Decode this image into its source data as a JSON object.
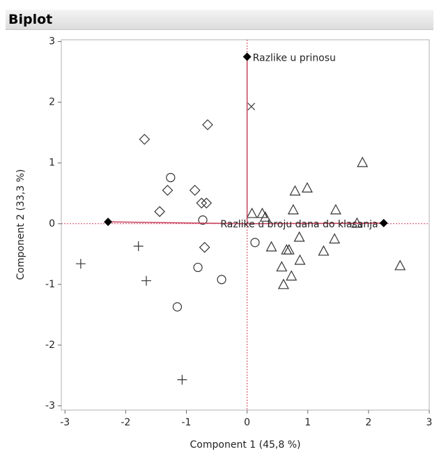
{
  "chart_data": {
    "type": "scatter",
    "title": "Biplot",
    "x_label": "Component 1  (45,8 %)",
    "y_label": "Component 2  (33,3 %)",
    "xlim": [
      -3.06,
      3.0
    ],
    "ylim": [
      -3.07,
      3.03
    ],
    "xticks": [
      -3,
      -2,
      -1,
      0,
      1,
      2,
      3
    ],
    "yticks": [
      -3,
      -2,
      -1,
      0,
      1,
      2,
      3
    ],
    "reference_line_color": "#d0405a",
    "series": [
      {
        "marker": "diamond",
        "color": "#333333",
        "x": [
          -1.69,
          -0.65,
          -1.31,
          -0.86,
          -1.44,
          -0.75,
          -0.67,
          -0.7
        ],
        "y": [
          1.39,
          1.63,
          0.55,
          0.55,
          0.2,
          0.34,
          0.34,
          -0.39
        ]
      },
      {
        "marker": "circle",
        "color": "#333333",
        "x": [
          -1.26,
          -0.73,
          0.13,
          -0.81,
          -0.42,
          -1.15
        ],
        "y": [
          0.76,
          0.06,
          -0.31,
          -0.72,
          -0.92,
          -1.37
        ]
      },
      {
        "marker": "triangle",
        "color": "#333333",
        "x": [
          0.08,
          0.25,
          0.3,
          0.79,
          0.99,
          0.76,
          1.9,
          1.46,
          1.81,
          0.4,
          0.65,
          0.69,
          0.86,
          0.87,
          0.57,
          0.73,
          0.6,
          1.26,
          1.44,
          2.52
        ],
        "y": [
          0.17,
          0.17,
          0.11,
          0.54,
          0.59,
          0.23,
          1.01,
          0.23,
          0.01,
          -0.38,
          -0.43,
          -0.43,
          -0.22,
          -0.6,
          -0.71,
          -0.86,
          -1.0,
          -0.45,
          -0.25,
          -0.69
        ]
      },
      {
        "marker": "plus",
        "color": "#333333",
        "x": [
          -2.74,
          -1.79,
          -1.66,
          -1.07
        ],
        "y": [
          -0.66,
          -0.37,
          -0.94,
          -2.57
        ]
      },
      {
        "marker": "cross",
        "color": "#333333",
        "x": [
          0.07
        ],
        "y": [
          1.93
        ]
      }
    ],
    "loadings": {
      "color": "#c8405a",
      "x": [
        0.0,
        -2.29,
        2.25
      ],
      "y": [
        2.75,
        0.03,
        0.01
      ],
      "labels": [
        "Razlike u prinosu",
        null,
        "Razlike u broju dana do klasanja"
      ]
    }
  }
}
